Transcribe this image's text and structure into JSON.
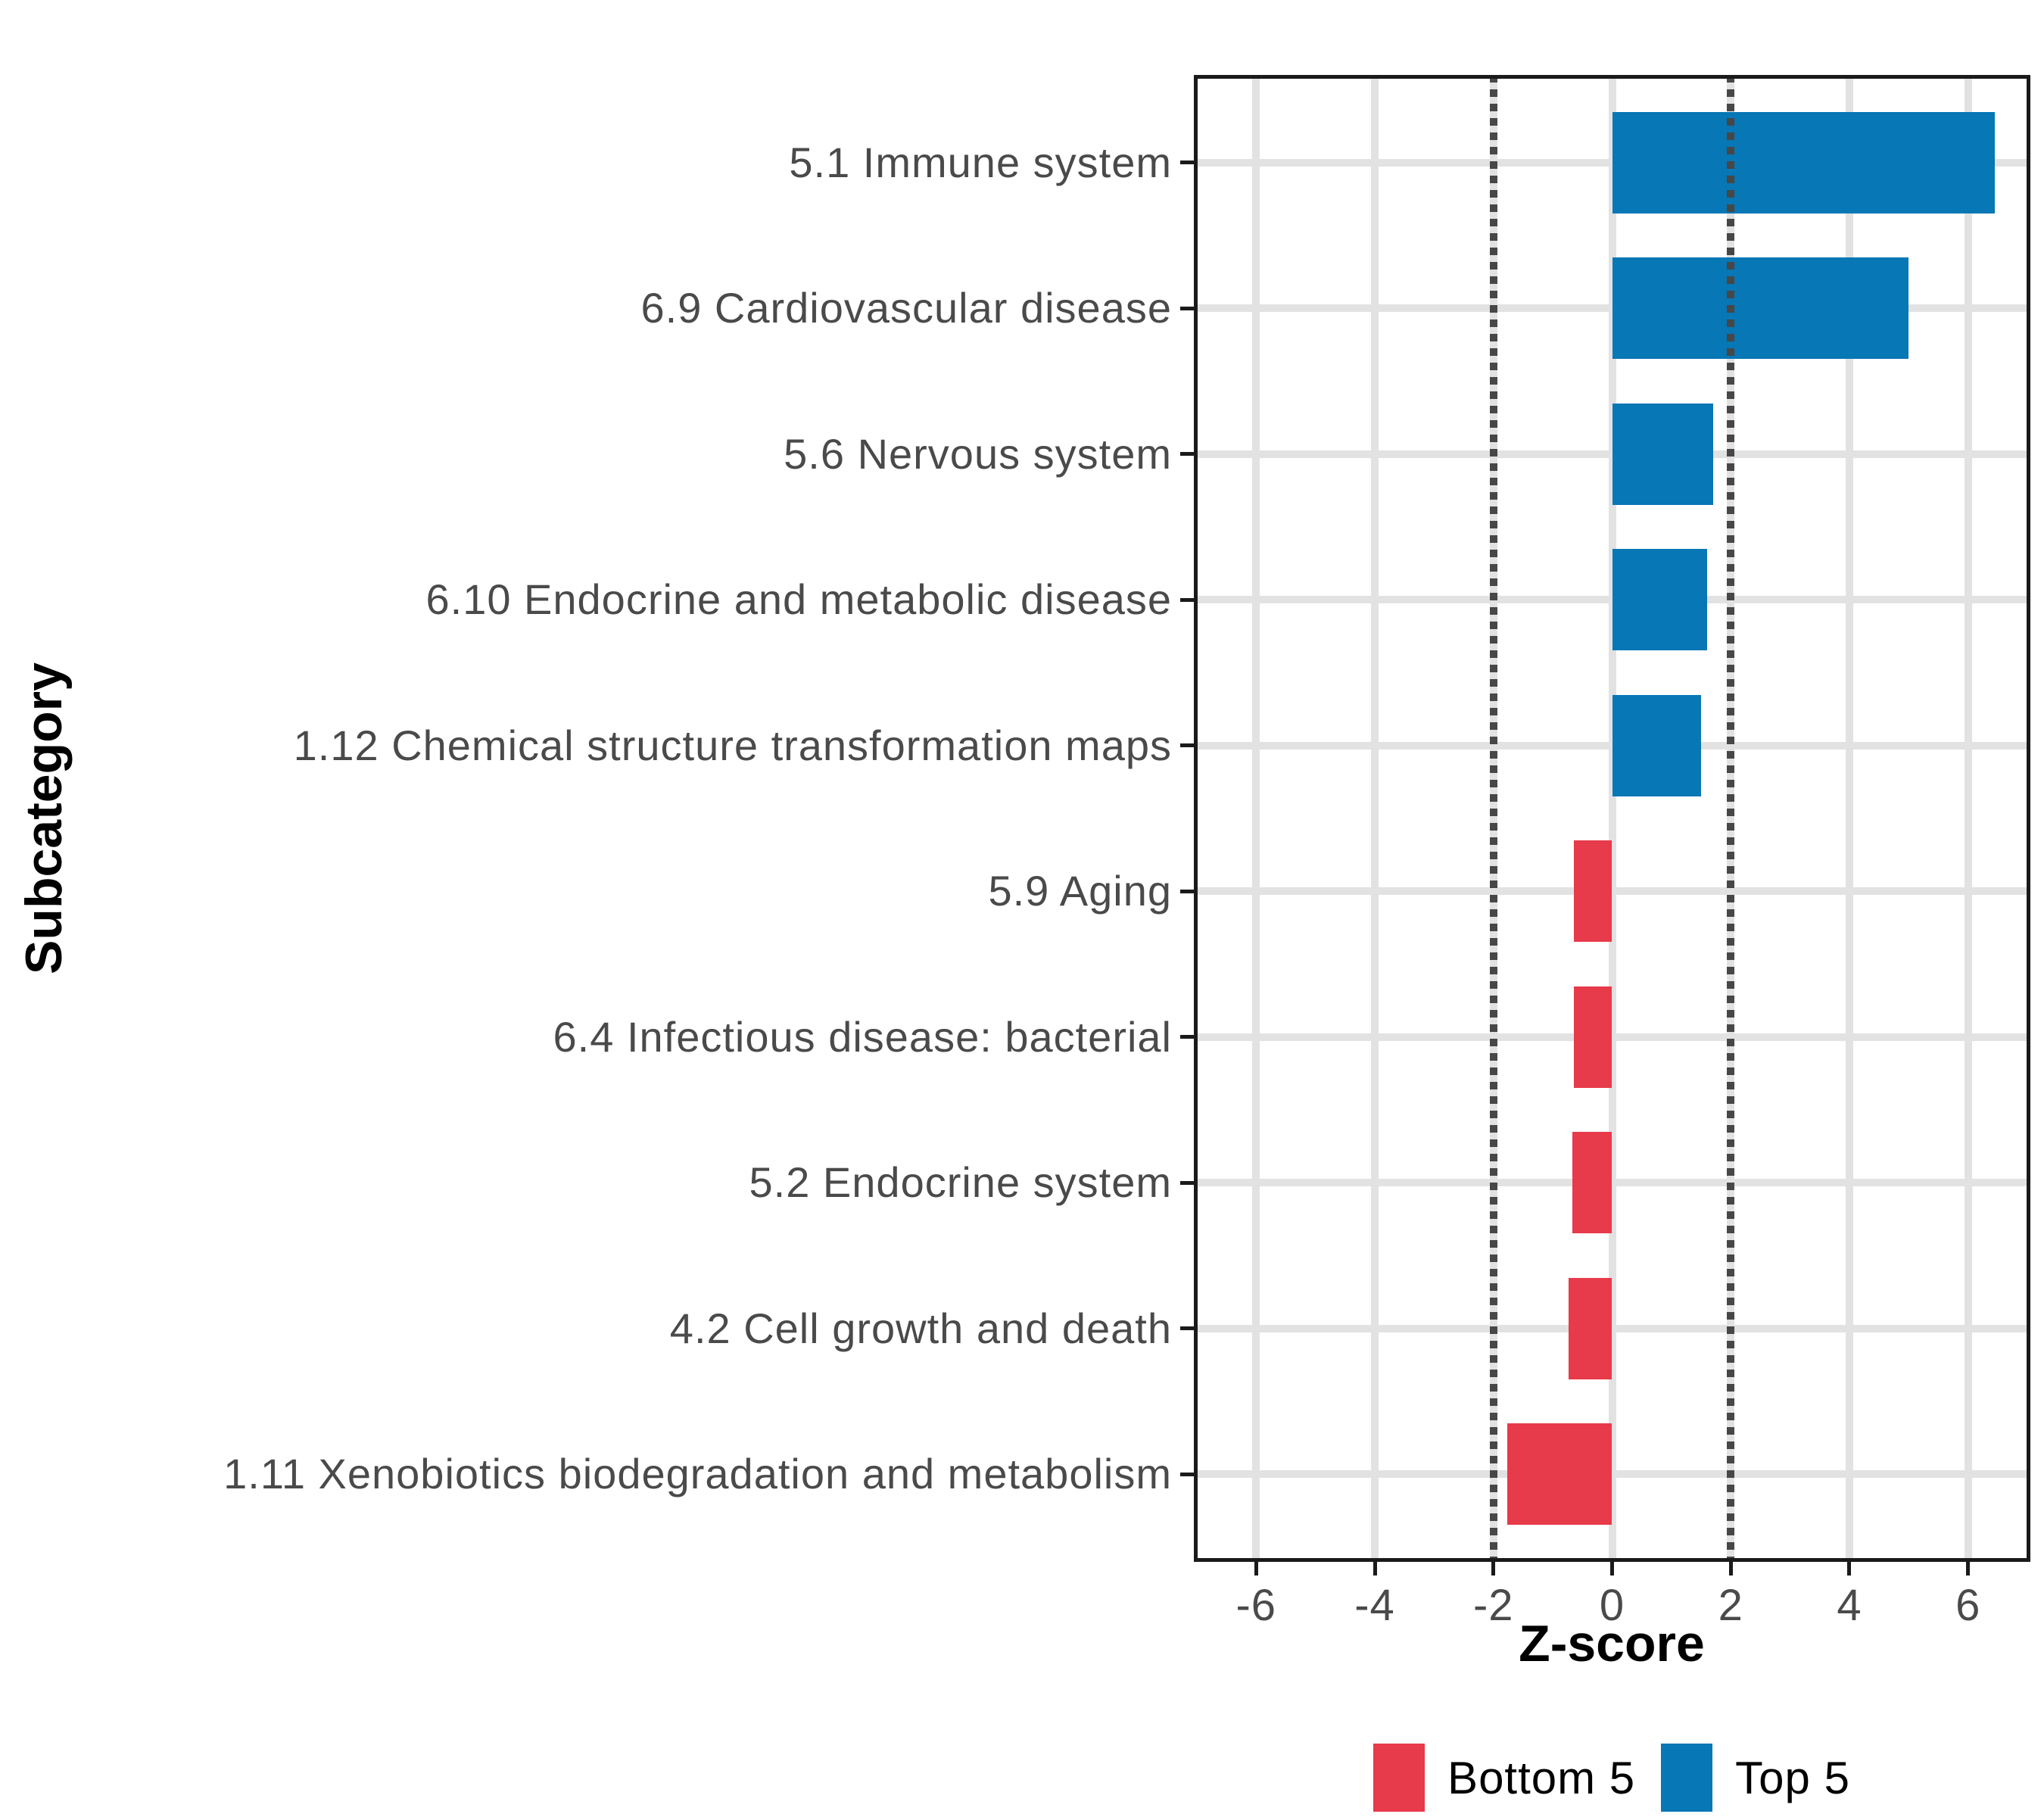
{
  "chart_data": {
    "type": "bar",
    "orientation": "horizontal",
    "title": "",
    "xlabel": "Z-score",
    "ylabel": "Subcategory",
    "xlim": [
      -7.05,
      7.05
    ],
    "x_ticks": [
      -6,
      -4,
      -2,
      0,
      2,
      4,
      6
    ],
    "x_tick_labels": [
      "-6",
      "-4",
      "-2",
      "0",
      "2",
      "4",
      "6"
    ],
    "reference_lines_x": [
      -2,
      2
    ],
    "grid": "major vertical gridlines every 2 units; horizontal gridline at each category row",
    "legend_position": "bottom",
    "categories": [
      "5.1 Immune system",
      "6.9 Cardiovascular disease",
      "5.6 Nervous system",
      "6.10 Endocrine and metabolic disease",
      "1.12 Chemical structure transformation maps",
      "5.9 Aging",
      "6.4 Infectious disease: bacterial",
      "5.2 Endocrine system",
      "4.2 Cell growth and death",
      "1.11 Xenobiotics biodegradation and metabolism"
    ],
    "values": [
      6.45,
      5.0,
      1.7,
      1.6,
      1.5,
      -0.65,
      -0.65,
      -0.67,
      -0.74,
      -1.77
    ],
    "groups": [
      "Top 5",
      "Top 5",
      "Top 5",
      "Top 5",
      "Top 5",
      "Bottom 5",
      "Bottom 5",
      "Bottom 5",
      "Bottom 5",
      "Bottom 5"
    ],
    "series": [
      {
        "name": "Top 5",
        "color": "#0777b5"
      },
      {
        "name": "Bottom 5",
        "color": "#e73a4a"
      }
    ],
    "legend": [
      {
        "label": "Bottom 5",
        "color": "#e73a4a"
      },
      {
        "label": "Top 5",
        "color": "#0777b5"
      }
    ]
  },
  "colors": {
    "bar_top5": "#0777b5",
    "bar_bottom5": "#e73a4a",
    "gridline": "#e2e2e2",
    "reference_line": "#474747",
    "panel_border": "#1a1a1a",
    "axis_text": "#4a4a4a",
    "title_text": "#000000",
    "background": "#ffffff"
  }
}
